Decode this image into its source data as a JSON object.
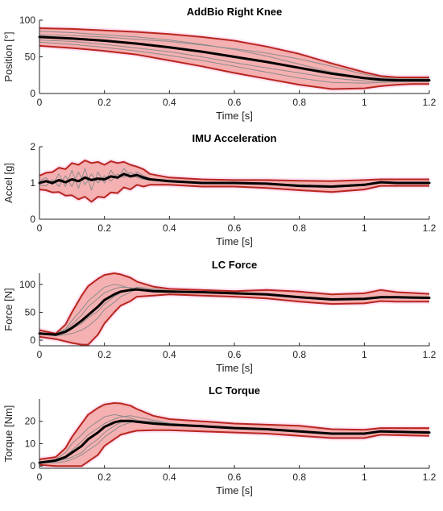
{
  "colors": {
    "band_fill": "#f4a7a8",
    "band_edge": "#b8261e",
    "trial": "#8c8c8c",
    "mean": "#000000",
    "axis": "#262626",
    "glow": "#ff66cc"
  },
  "chart_data": [
    {
      "type": "line",
      "title": "AddBio Right Knee",
      "xlabel": "Time [s]",
      "ylabel": "Position [°]",
      "xlim": [
        0,
        1.2
      ],
      "ylim": [
        0,
        100
      ],
      "xticks": [
        0,
        0.2,
        0.4,
        0.6,
        0.8,
        1,
        1.2
      ],
      "xtick_labels": [
        "0",
        "0.2",
        "0.4",
        "0.6",
        "0.8",
        "1",
        "1.2"
      ],
      "yticks": [
        0,
        50,
        100
      ],
      "ytick_labels": [
        "0",
        "50",
        "100"
      ],
      "x": [
        0,
        0.1,
        0.2,
        0.3,
        0.4,
        0.5,
        0.6,
        0.7,
        0.8,
        0.9,
        1.0,
        1.05,
        1.1,
        1.15,
        1.2
      ],
      "series": [
        {
          "role": "mean",
          "values": [
            77,
            75,
            72,
            68,
            63,
            57,
            50,
            43,
            35,
            27,
            21,
            19,
            18,
            18,
            18
          ]
        },
        {
          "role": "upper",
          "values": [
            89,
            88,
            86,
            84,
            81,
            77,
            72,
            64,
            54,
            41,
            29,
            24,
            22,
            22,
            22
          ]
        },
        {
          "role": "lower",
          "values": [
            65,
            62,
            58,
            53,
            45,
            37,
            28,
            20,
            12,
            6,
            7,
            10,
            12,
            13,
            13
          ]
        },
        {
          "role": "trial",
          "values": [
            85,
            83,
            80,
            77,
            73,
            67,
            60,
            51,
            40,
            29,
            22,
            20,
            19,
            19,
            19
          ]
        },
        {
          "role": "trial",
          "values": [
            70,
            67,
            63,
            58,
            52,
            45,
            37,
            29,
            21,
            15,
            14,
            15,
            16,
            16,
            16
          ]
        },
        {
          "role": "trial",
          "values": [
            80,
            79,
            77,
            74,
            71,
            66,
            61,
            55,
            47,
            37,
            26,
            22,
            20,
            20,
            20
          ]
        },
        {
          "role": "trial",
          "values": [
            73,
            71,
            67,
            62,
            57,
            50,
            42,
            35,
            28,
            21,
            17,
            17,
            17,
            17,
            17
          ]
        }
      ]
    },
    {
      "type": "line",
      "title": "IMU Acceleration",
      "xlabel": "Time [s]",
      "ylabel": "Accel [g]",
      "xlim": [
        0,
        1.2
      ],
      "ylim": [
        0,
        2
      ],
      "xticks": [
        0,
        0.2,
        0.4,
        0.6,
        0.8,
        1,
        1.2
      ],
      "xtick_labels": [
        "0",
        "0.2",
        "0.4",
        "0.6",
        "0.8",
        "1",
        "1.2"
      ],
      "yticks": [
        0,
        1,
        2
      ],
      "ytick_labels": [
        "0",
        "1",
        "2"
      ],
      "x": [
        0,
        0.02,
        0.04,
        0.06,
        0.08,
        0.1,
        0.12,
        0.14,
        0.16,
        0.18,
        0.2,
        0.22,
        0.24,
        0.26,
        0.28,
        0.3,
        0.32,
        0.34,
        0.4,
        0.5,
        0.6,
        0.7,
        0.8,
        0.9,
        1.0,
        1.05,
        1.1,
        1.2
      ],
      "series": [
        {
          "role": "mean",
          "values": [
            1.0,
            1.05,
            1.0,
            1.08,
            1.02,
            1.1,
            1.05,
            1.15,
            1.08,
            1.12,
            1.1,
            1.18,
            1.15,
            1.25,
            1.18,
            1.22,
            1.15,
            1.1,
            1.05,
            1.0,
            1.0,
            0.98,
            0.92,
            0.9,
            0.95,
            1.02,
            1.0,
            1.0
          ]
        },
        {
          "role": "upper",
          "values": [
            1.2,
            1.28,
            1.3,
            1.42,
            1.38,
            1.55,
            1.5,
            1.62,
            1.55,
            1.58,
            1.5,
            1.6,
            1.55,
            1.58,
            1.5,
            1.45,
            1.38,
            1.25,
            1.15,
            1.1,
            1.08,
            1.08,
            1.06,
            1.05,
            1.08,
            1.1,
            1.1,
            1.1
          ]
        },
        {
          "role": "lower",
          "values": [
            0.82,
            0.8,
            0.74,
            0.75,
            0.65,
            0.66,
            0.55,
            0.62,
            0.48,
            0.62,
            0.6,
            0.74,
            0.72,
            0.88,
            0.82,
            0.95,
            0.9,
            0.95,
            0.95,
            0.9,
            0.9,
            0.86,
            0.8,
            0.75,
            0.82,
            0.92,
            0.92,
            0.92
          ]
        },
        {
          "role": "trial",
          "values": [
            1.05,
            1.15,
            0.95,
            1.25,
            0.9,
            1.35,
            0.85,
            1.4,
            0.8,
            1.3,
            1.0,
            1.35,
            1.1,
            1.4,
            1.2,
            1.3,
            1.2,
            1.12,
            1.06,
            1.02,
            1.0,
            0.97,
            0.9,
            0.88,
            0.93,
            1.02,
            1.0,
            0.99
          ]
        },
        {
          "role": "trial",
          "values": [
            0.95,
            0.92,
            1.1,
            0.9,
            1.2,
            0.9,
            1.3,
            0.95,
            1.25,
            1.0,
            1.2,
            1.05,
            1.25,
            1.15,
            1.3,
            1.15,
            1.1,
            1.08,
            1.03,
            0.99,
            1.0,
            0.99,
            0.95,
            0.92,
            0.97,
            1.03,
            1.02,
            1.01
          ]
        }
      ]
    },
    {
      "type": "line",
      "title": "LC Force",
      "xlabel": "Time [s]",
      "ylabel": "Force [N]",
      "xlim": [
        0,
        1.2
      ],
      "ylim": [
        -10,
        120
      ],
      "xticks": [
        0,
        0.2,
        0.4,
        0.6,
        0.8,
        1,
        1.2
      ],
      "xtick_labels": [
        "0",
        "0.2",
        "0.4",
        "0.6",
        "0.8",
        "1",
        "1.2"
      ],
      "yticks": [
        0,
        50,
        100
      ],
      "ytick_labels": [
        "0",
        "50",
        "100"
      ],
      "x": [
        0,
        0.05,
        0.08,
        0.1,
        0.13,
        0.15,
        0.18,
        0.2,
        0.23,
        0.25,
        0.28,
        0.3,
        0.35,
        0.4,
        0.5,
        0.6,
        0.7,
        0.8,
        0.9,
        1.0,
        1.05,
        1.1,
        1.2
      ],
      "series": [
        {
          "role": "mean",
          "values": [
            12,
            10,
            15,
            22,
            35,
            45,
            60,
            72,
            82,
            87,
            90,
            91,
            88,
            87,
            86,
            84,
            82,
            77,
            73,
            74,
            77,
            77,
            76
          ]
        },
        {
          "role": "upper",
          "values": [
            18,
            12,
            28,
            50,
            80,
            97,
            110,
            117,
            120,
            118,
            112,
            105,
            96,
            92,
            90,
            88,
            90,
            87,
            82,
            84,
            90,
            86,
            83
          ]
        },
        {
          "role": "lower",
          "values": [
            6,
            2,
            -2,
            -5,
            -8,
            -8,
            10,
            30,
            50,
            62,
            70,
            78,
            80,
            82,
            80,
            78,
            75,
            69,
            65,
            66,
            70,
            69,
            69
          ]
        },
        {
          "role": "trial",
          "values": [
            10,
            12,
            20,
            35,
            55,
            70,
            85,
            95,
            100,
            98,
            93,
            90,
            87,
            86,
            85,
            83,
            81,
            76,
            72,
            73,
            77,
            77,
            76
          ]
        },
        {
          "role": "trial",
          "values": [
            14,
            8,
            10,
            12,
            18,
            25,
            40,
            55,
            68,
            78,
            86,
            92,
            90,
            88,
            87,
            85,
            83,
            78,
            74,
            75,
            78,
            78,
            77
          ]
        },
        {
          "role": "trial",
          "values": [
            12,
            10,
            14,
            20,
            30,
            40,
            52,
            65,
            78,
            85,
            90,
            95,
            92,
            89,
            86,
            84,
            82,
            77,
            73,
            74,
            76,
            76,
            75
          ]
        },
        {
          "role": "trial",
          "values": [
            13,
            11,
            18,
            28,
            45,
            60,
            75,
            85,
            92,
            95,
            94,
            93,
            89,
            87,
            86,
            84,
            82,
            77,
            73,
            74,
            77,
            77,
            76
          ]
        }
      ]
    },
    {
      "type": "line",
      "title": "LC Torque",
      "xlabel": "Time [s]",
      "ylabel": "Torque [Nm]",
      "xlim": [
        0,
        1.2
      ],
      "ylim": [
        -1,
        30
      ],
      "xticks": [
        0,
        0.2,
        0.4,
        0.6,
        0.8,
        1,
        1.2
      ],
      "xtick_labels": [
        "0",
        "0.2",
        "0.4",
        "0.6",
        "0.8",
        "1",
        "1.2"
      ],
      "yticks": [
        0,
        10,
        20
      ],
      "ytick_labels": [
        "0",
        "10",
        "20"
      ],
      "x": [
        0,
        0.05,
        0.08,
        0.1,
        0.13,
        0.15,
        0.18,
        0.2,
        0.23,
        0.25,
        0.28,
        0.3,
        0.35,
        0.4,
        0.5,
        0.6,
        0.7,
        0.8,
        0.9,
        1.0,
        1.05,
        1.1,
        1.2
      ],
      "series": [
        {
          "role": "mean",
          "values": [
            1.5,
            2.5,
            4,
            6,
            9,
            12,
            15,
            17.5,
            19.5,
            20.2,
            20.2,
            19.8,
            19,
            18.5,
            17.8,
            17,
            16.5,
            15.5,
            14.5,
            14.5,
            15.5,
            15.3,
            15
          ]
        },
        {
          "role": "upper",
          "values": [
            3,
            4,
            8,
            13,
            19,
            23,
            26,
            27.5,
            28.2,
            28,
            27,
            25.5,
            22.5,
            21,
            20,
            19,
            18.5,
            18,
            16.5,
            16.2,
            17,
            17,
            17
          ]
        },
        {
          "role": "lower",
          "values": [
            0.5,
            0,
            0,
            0,
            0,
            2,
            5,
            9,
            12,
            14,
            15.2,
            15.8,
            16,
            16,
            15.5,
            15,
            14.5,
            13.5,
            12.5,
            12.5,
            14,
            13.8,
            13.5
          ]
        },
        {
          "role": "trial",
          "values": [
            1.5,
            3,
            6,
            10,
            14,
            17,
            20,
            22,
            23,
            22.5,
            21.5,
            20.5,
            19.5,
            18.8,
            18,
            17.2,
            16.6,
            15.6,
            14.6,
            14.6,
            15.6,
            15.4,
            15.1
          ]
        },
        {
          "role": "trial",
          "values": [
            1.5,
            1.5,
            2,
            3,
            5,
            7,
            10,
            13,
            16,
            18,
            19.5,
            20,
            19.5,
            18.8,
            17.8,
            17,
            16.4,
            15.4,
            14.4,
            14.4,
            15.4,
            15.2,
            14.9
          ]
        },
        {
          "role": "trial",
          "values": [
            2,
            2.5,
            4.5,
            7,
            11,
            14,
            17,
            19,
            21,
            22,
            22.5,
            22,
            20.5,
            19.2,
            18,
            17.1,
            16.6,
            15.6,
            14.6,
            14.6,
            15.6,
            15.4,
            15.1
          ]
        },
        {
          "role": "trial",
          "values": [
            1.2,
            2,
            3,
            4,
            6,
            9,
            12,
            15,
            18,
            19.5,
            20,
            20.3,
            19.8,
            19,
            17.9,
            17,
            16.5,
            15.5,
            14.5,
            14.5,
            15.4,
            15.2,
            15
          ]
        }
      ]
    }
  ]
}
